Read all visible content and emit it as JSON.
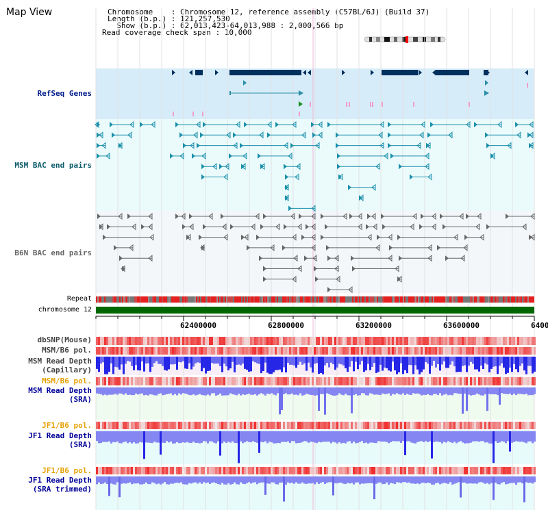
{
  "title": "Map View",
  "info": {
    "chromosome": "Chromosome    : Chromosome 12, reference assembly (C57BL/6J) (Build 37)",
    "length": "Length (b.p.) : 121,257,530",
    "show": "  Show (b.p.) : 62,013,423-64,013,988 : 2,000,566 bp",
    "coverage": "Read coverage check span : 10,000"
  },
  "tracks": {
    "refseq": "RefSeq Genes",
    "msm_bac": "MSM BAC end pairs",
    "b6n_bac": "B6N BAC end pairs",
    "repeat": "Repeat",
    "chromosome": "chromosome 12",
    "dbsnp": "dbSNP(Mouse)",
    "msm_b6_pol_1": "MSM/B6 pol.",
    "msm_read_depth_cap_1": "MSM Read Depth",
    "msm_read_depth_cap_2": "(Capillary)",
    "msm_b6_pol_2": "MSM/B6 pol.",
    "msm_read_depth_sra_1": "MSM Read Depth",
    "msm_read_depth_sra_2": "(SRA)",
    "jf1_b6_pol_1": "JF1/B6 pol.",
    "jf1_read_depth_sra_1": "JF1 Read Depth",
    "jf1_read_depth_sra_2": "(SRA)",
    "jf1_b6_pol_2": "JF1/B6 pol.",
    "jf1_read_depth_trim_1": "JF1 Read Depth",
    "jf1_read_depth_trim_2": "(SRA trimmed)"
  },
  "axis": {
    "range_bp": [
      62013423,
      64013988
    ],
    "ticks": [
      "62400000",
      "62800000",
      "63200000",
      "63600000",
      "6400"
    ]
  },
  "colors": {
    "refseq_bg": "#d6ecf9",
    "msm_bg": "#ebfbfc",
    "b6n_bg": "#f3f7fa",
    "gene": "#00305e",
    "refseq_label": "#001c8a",
    "msm_label": "#0a5a6a",
    "b6n_label": "#666666",
    "msm_feature": "#1a8faa",
    "b6n_feature": "#666666",
    "chromosome": "#006600",
    "pol_red": "#e52b2b",
    "depth_blue": "#2626e6",
    "depth_light": "#8686f2",
    "label_orange": "#e5a000",
    "label_blue": "#000099"
  }
}
